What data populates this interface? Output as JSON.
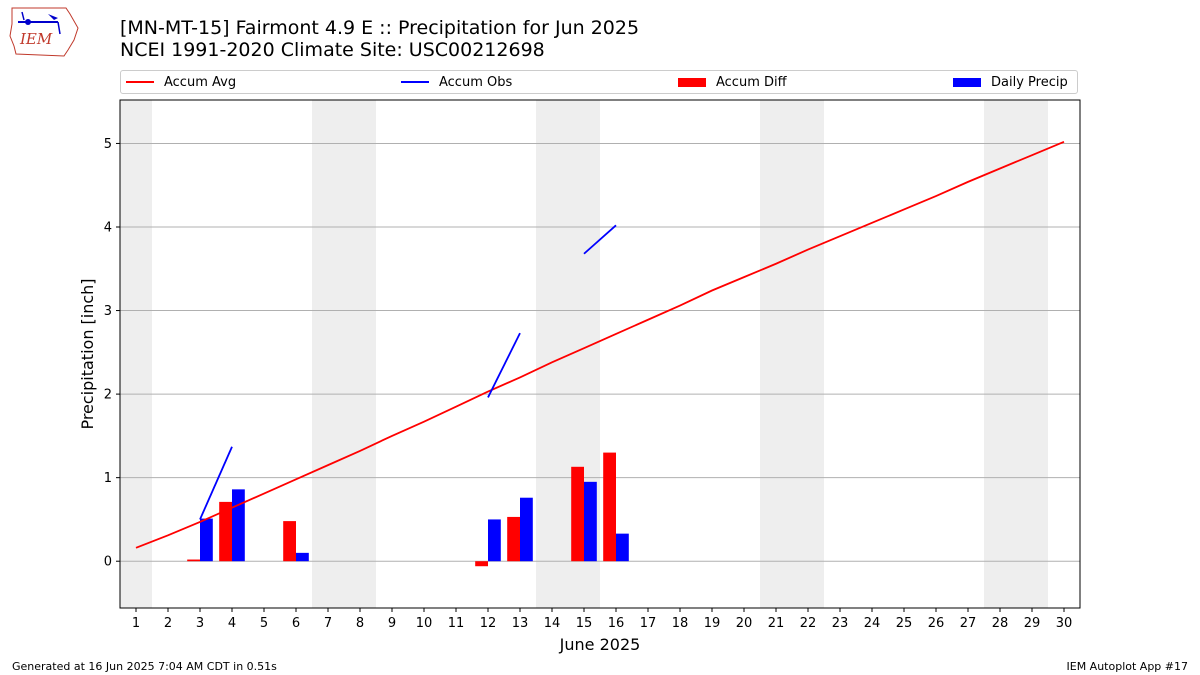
{
  "logo": {
    "text": "IEM"
  },
  "header": {
    "title_line1": "[MN-MT-15] Fairmont 4.9 E :: Precipitation for Jun 2025",
    "title_line2": "NCEI 1991-2020 Climate Site: USC00212698"
  },
  "colors": {
    "avg": "#ff0000",
    "obs": "#0000ff",
    "diff": "#ff0000",
    "daily": "#0000ff",
    "weekend": "#eeeeee",
    "grid": "#b0b0b0"
  },
  "footer": {
    "left": "Generated at 16 Jun 2025 7:04 AM CDT in 0.51s",
    "right": "IEM Autoplot App #17"
  },
  "chart_data": {
    "type": "bar",
    "xlabel": "June 2025",
    "ylabel": "Precipitation [inch]",
    "xlim": [
      0.5,
      30.5
    ],
    "ylim": [
      -0.56,
      5.52
    ],
    "yticks": [
      0,
      1,
      2,
      3,
      4,
      5
    ],
    "xticks": [
      "1",
      "2",
      "3",
      "4",
      "5",
      "6",
      "7",
      "8",
      "9",
      "10",
      "11",
      "12",
      "13",
      "14",
      "15",
      "16",
      "17",
      "18",
      "19",
      "20",
      "21",
      "22",
      "23",
      "24",
      "25",
      "26",
      "27",
      "28",
      "29",
      "30"
    ],
    "grid": "horizontal",
    "legend": {
      "placement": "top",
      "entries": [
        "Accum Avg",
        "Accum Obs",
        "Accum Diff",
        "Daily Precip"
      ]
    },
    "weekend_days": [
      1,
      7,
      8,
      14,
      15,
      21,
      22,
      28,
      29
    ],
    "series": [
      {
        "name": "Accum Avg",
        "kind": "line",
        "x": [
          1,
          2,
          3,
          4,
          5,
          6,
          7,
          8,
          9,
          10,
          11,
          12,
          13,
          14,
          15,
          16,
          17,
          18,
          19,
          20,
          21,
          22,
          23,
          24,
          25,
          26,
          27,
          28,
          29,
          30
        ],
        "values": [
          0.16,
          0.31,
          0.47,
          0.64,
          0.81,
          0.98,
          1.15,
          1.32,
          1.5,
          1.67,
          1.85,
          2.03,
          2.2,
          2.38,
          2.55,
          2.72,
          2.89,
          3.06,
          3.24,
          3.4,
          3.56,
          3.73,
          3.89,
          4.05,
          4.21,
          4.37,
          4.54,
          4.7,
          4.86,
          5.02
        ]
      },
      {
        "name": "Accum Obs",
        "kind": "line",
        "segments": [
          {
            "x": [
              3,
              4
            ],
            "values": [
              0.5,
              1.37
            ]
          },
          {
            "x": [
              12,
              13
            ],
            "values": [
              1.96,
              2.73
            ]
          },
          {
            "x": [
              15,
              16
            ],
            "values": [
              3.68,
              4.02
            ]
          }
        ]
      },
      {
        "name": "Accum Diff",
        "kind": "bar",
        "x": [
          3,
          4,
          6,
          12,
          13,
          15,
          16
        ],
        "values": [
          0.02,
          0.71,
          0.48,
          -0.06,
          0.53,
          1.13,
          1.3
        ]
      },
      {
        "name": "Daily Precip",
        "kind": "bar",
        "x": [
          3,
          4,
          6,
          12,
          13,
          15,
          16
        ],
        "values": [
          0.51,
          0.86,
          0.1,
          0.5,
          0.76,
          0.95,
          0.33
        ]
      }
    ]
  }
}
